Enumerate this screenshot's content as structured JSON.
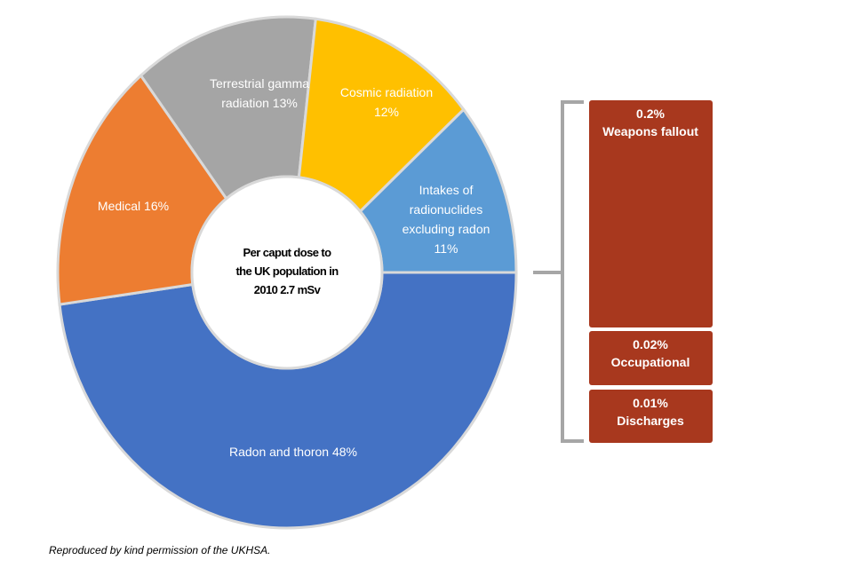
{
  "chart_data": {
    "type": "pie",
    "variant": "donut",
    "center_label": [
      "Per caput dose to",
      "the UK population in",
      "2010 2.7 mSv"
    ],
    "slices": [
      {
        "name": "Radon and thoron",
        "value": 48,
        "label": [
          "Radon and thoron 48%"
        ],
        "color": "#4472C4"
      },
      {
        "name": "Medical",
        "value": 16,
        "label": [
          "Medical 16%"
        ],
        "color": "#ED7D31"
      },
      {
        "name": "Terrestrial gamma radiation",
        "value": 13,
        "label": [
          "Terrestrial gamma",
          "radiation 13%"
        ],
        "color": "#A5A5A5"
      },
      {
        "name": "Cosmic radiation",
        "value": 12,
        "label": [
          "Cosmic radiation",
          "12%"
        ],
        "color": "#FFC000"
      },
      {
        "name": "Intakes of radionuclides excluding radon",
        "value": 11,
        "label": [
          "Intakes of",
          "radionuclides",
          "excluding radon",
          "11%"
        ],
        "color": "#5B9BD5"
      }
    ],
    "breakdown": {
      "color": "#A8381E",
      "items": [
        {
          "name": "Weapons fallout",
          "value": 0.2,
          "label": [
            "0.2%",
            "Weapons fallout"
          ]
        },
        {
          "name": "Occupational",
          "value": 0.02,
          "label": [
            "0.02%",
            "Occupational"
          ]
        },
        {
          "name": "Discharges",
          "value": 0.01,
          "label": [
            "0.01%",
            "Discharges"
          ]
        }
      ]
    }
  },
  "footnote": "Reproduced by kind permission of the UKHSA."
}
